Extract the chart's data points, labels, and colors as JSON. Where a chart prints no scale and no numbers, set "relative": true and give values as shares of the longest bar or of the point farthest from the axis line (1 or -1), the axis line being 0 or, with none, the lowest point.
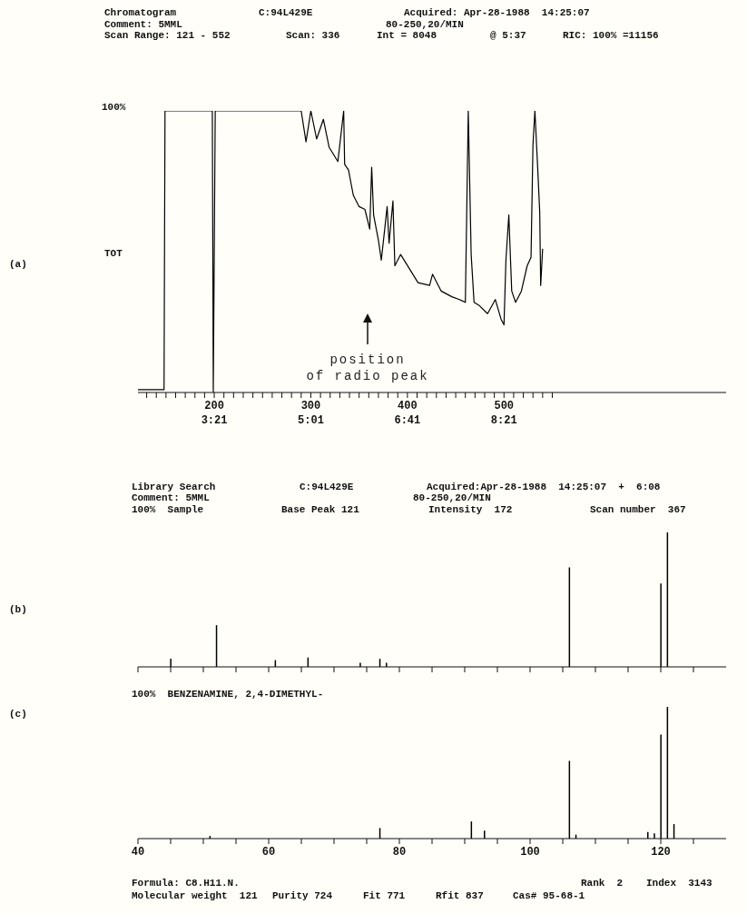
{
  "chart_data": [
    {
      "type": "line",
      "title": "Chromatogram",
      "relative": true,
      "marker": "none",
      "line_style": "solid",
      "xlim": [
        121,
        730
      ],
      "xticks": [
        {
          "value": 130,
          "label": null
        },
        {
          "value": 140,
          "label": null
        },
        {
          "value": 150,
          "label": null
        },
        {
          "value": 160,
          "label": null
        },
        {
          "value": 170,
          "label": null
        },
        {
          "value": 180,
          "label": null
        },
        {
          "value": 190,
          "label": null
        },
        200,
        {
          "value": 210,
          "label": null
        },
        {
          "value": 220,
          "label": null
        },
        {
          "value": 230,
          "label": null
        },
        {
          "value": 240,
          "label": null
        },
        {
          "value": 250,
          "label": null
        },
        {
          "value": 260,
          "label": null
        },
        {
          "value": 270,
          "label": null
        },
        {
          "value": 280,
          "label": null
        },
        {
          "value": 290,
          "label": null
        },
        300,
        {
          "value": 310,
          "label": null
        },
        {
          "value": 320,
          "label": null
        },
        {
          "value": 330,
          "label": null
        },
        {
          "value": 340,
          "label": null
        },
        {
          "value": 350,
          "label": null
        },
        {
          "value": 360,
          "label": null
        },
        {
          "value": 370,
          "label": null
        },
        {
          "value": 380,
          "label": null
        },
        {
          "value": 390,
          "label": null
        },
        400,
        {
          "value": 410,
          "label": null
        },
        {
          "value": 420,
          "label": null
        },
        {
          "value": 430,
          "label": null
        },
        {
          "value": 440,
          "label": null
        },
        {
          "value": 450,
          "label": null
        },
        {
          "value": 460,
          "label": null
        },
        {
          "value": 470,
          "label": null
        },
        {
          "value": 480,
          "label": null
        },
        {
          "value": 490,
          "label": null
        },
        500,
        {
          "value": 510,
          "label": null
        },
        {
          "value": 520,
          "label": null
        },
        {
          "value": 530,
          "label": null
        },
        {
          "value": 540,
          "label": null
        },
        {
          "value": 550,
          "label": null
        }
      ],
      "x2lim": [
        2.0333,
        12.1833
      ],
      "x2ticks": [
        {
          "value": 3.35,
          "label": "3:21"
        },
        {
          "value": 5.0167,
          "label": "5:01"
        },
        {
          "value": 6.6833,
          "label": "6:41"
        },
        {
          "value": 8.35,
          "label": "8:21"
        }
      ],
      "series": [
        {
          "color": "#000000",
          "x": [
            121,
            148,
            149,
            195,
            198,
            199,
            201,
            290,
            295,
            300,
            306,
            313,
            319,
            328,
            334,
            335,
            339,
            344,
            350,
            356,
            361,
            363,
            365,
            370,
            373,
            379,
            381,
            385,
            387,
            393,
            402,
            411,
            423,
            426,
            435,
            446,
            454,
            460,
            463,
            466,
            469,
            474,
            483,
            491,
            497,
            500,
            502,
            505,
            508,
            512,
            518,
            524,
            528,
            530,
            532,
            535,
            537,
            538,
            540
          ],
          "values": [
            0.01,
            0.01,
            1,
            1,
            1,
            0,
            1,
            1,
            0.89,
            1,
            0.9,
            0.97,
            0.87,
            0.82,
            1,
            0.81,
            0.79,
            0.7,
            0.66,
            0.65,
            0.58,
            0.8,
            0.63,
            0.54,
            0.47,
            0.66,
            0.53,
            0.68,
            0.45,
            0.49,
            0.44,
            0.39,
            0.38,
            0.42,
            0.36,
            0.34,
            0.33,
            0.32,
            1,
            0.49,
            0.32,
            0.31,
            0.28,
            0.33,
            0.26,
            0.24,
            0.47,
            0.63,
            0.36,
            0.32,
            0.36,
            0.45,
            0.48,
            0.88,
            1,
            0.79,
            0.64,
            0.38,
            0.51
          ]
        }
      ],
      "annotations": [
        "C:94L429E",
        "Acquired: Apr-28-1988  14:25:07",
        "Comment: 5MML",
        "80-250,20/MIN",
        "Scan Range: 121 - 552",
        "Scan: 336",
        "Int = 8048",
        "@ 5:37",
        "RIC: 100% =11156",
        "100%",
        "TOT",
        "(a)",
        "position\nof radio peak"
      ]
    },
    {
      "type": "bar",
      "title": "Library Search",
      "relative": true,
      "tick_labels": false,
      "xlim": [
        40,
        130
      ],
      "xticks": [
        40,
        45,
        50,
        55,
        60,
        65,
        70,
        75,
        80,
        85,
        90,
        95,
        100,
        105,
        110,
        115,
        120,
        125
      ],
      "series": [
        {
          "color": "#000000",
          "x": [
            45,
            52,
            61,
            66,
            74,
            77,
            78,
            106,
            120,
            121
          ],
          "values": [
            0.06,
            0.31,
            0.05,
            0.07,
            0.03,
            0.06,
            0.03,
            0.74,
            0.62,
            1
          ]
        }
      ],
      "annotations": [
        "C:94L429E",
        "Acquired:Apr-28-1988  14:25:07  +  6:08",
        "Comment: 5MML",
        "80-250,20/MIN",
        "100%  Sample",
        "Base Peak 121",
        "Intensity  172",
        "Scan number  367",
        "(b)"
      ]
    },
    {
      "type": "bar",
      "title": "100%  BENZENAMINE, 2,4-DIMETHYL-",
      "relative": true,
      "xlim": [
        40,
        130
      ],
      "xticks": [
        40,
        {
          "value": 45,
          "label": null
        },
        {
          "value": 50,
          "label": null
        },
        {
          "value": 55,
          "label": null
        },
        60,
        {
          "value": 65,
          "label": null
        },
        {
          "value": 70,
          "label": null
        },
        {
          "value": 75,
          "label": null
        },
        80,
        {
          "value": 85,
          "label": null
        },
        {
          "value": 90,
          "label": null
        },
        {
          "value": 95,
          "label": null
        },
        100,
        {
          "value": 105,
          "label": null
        },
        {
          "value": 110,
          "label": null
        },
        {
          "value": 115,
          "label": null
        },
        120,
        {
          "value": 125,
          "label": null
        }
      ],
      "series": [
        {
          "color": "#000000",
          "x": [
            51,
            77,
            91,
            93,
            106,
            107,
            118,
            119,
            120,
            121,
            122
          ],
          "values": [
            0.02,
            0.08,
            0.13,
            0.06,
            0.59,
            0.03,
            0.05,
            0.04,
            0.79,
            1,
            0.11
          ]
        }
      ],
      "annotations": [
        "Formula: C8.H11.N.",
        "Molecular weight  121",
        "Purity 724",
        "Fit 771",
        "Rfit 837",
        "Cas# 95-68-1",
        "Rank  2",
        "Index  3143",
        "(c)"
      ]
    }
  ]
}
